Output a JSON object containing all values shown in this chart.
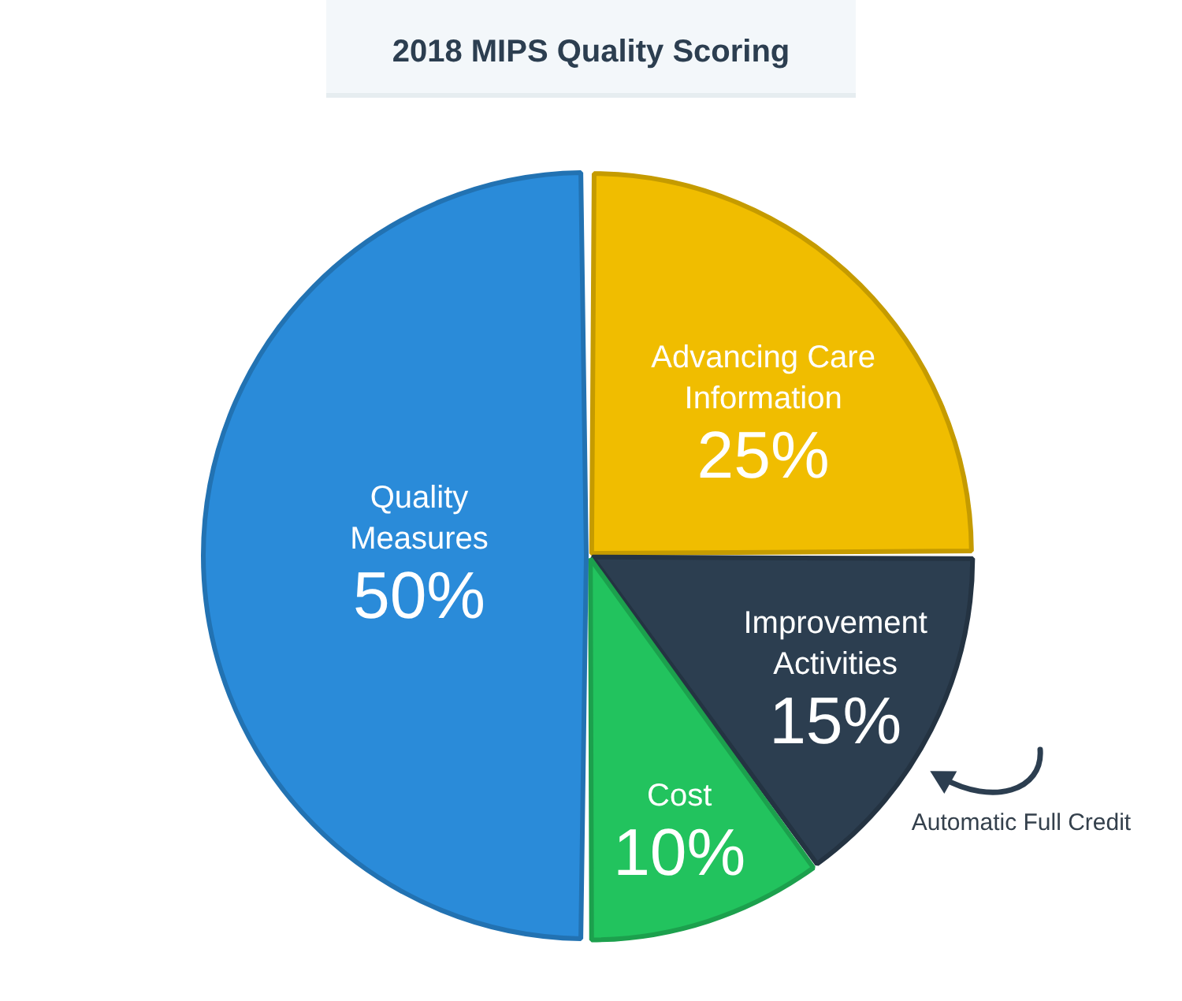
{
  "chart_data": {
    "type": "pie",
    "title": "2018 MIPS Quality Scoring",
    "categories": [
      "Advancing Care Information",
      "Improvement Activities",
      "Cost",
      "Quality Measures"
    ],
    "values": [
      25,
      15,
      10,
      50
    ],
    "colors": [
      "#f0bd00",
      "#2c3e50",
      "#22c35e",
      "#2a8bd9"
    ],
    "value_labels": [
      "25%",
      "15%",
      "10%",
      "50%"
    ],
    "annotations": [
      "Automatic Full Credit"
    ]
  }
}
